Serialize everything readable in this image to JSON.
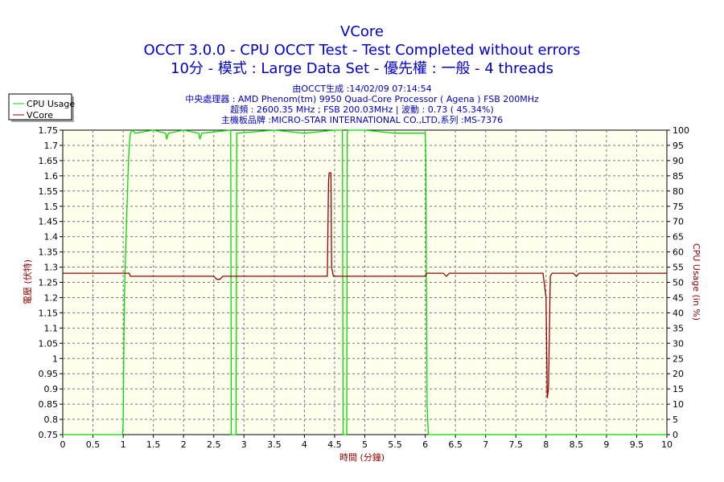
{
  "title": "VCore",
  "subtitle1": "OCCT 3.0.0 - CPU OCCT Test - Test Completed without errors",
  "subtitle2": "10分 - 模式 : Large Data Set - 優先權 : 一般 - 4 threads",
  "info": [
    "由OCCT生成 :14/02/09 07:14:54",
    "中央處理器 : AMD Phenom(tm) 9950 Quad-Core Processor ( Agena ) FSB 200MHz",
    "超頻 : 2600.35 MHz ; FSB 200.03MHz | 波動 : 0.73 ( 45.34%)",
    "主機板品牌 :MICRO-STAR INTERNATIONAL CO.,LTD,系列 :MS-7376"
  ],
  "colors": {
    "title": "#0000cc",
    "cpu": "#00dd00",
    "vcore": "#990000",
    "plot_bg": "#ffffee"
  },
  "chart_data": {
    "type": "line",
    "title": "VCore",
    "xlabel": "時間 (分鐘)",
    "ylabel_left": "電壓 (伏特)",
    "ylabel_right": "CPU Usage (in %)",
    "xlim": [
      0,
      10
    ],
    "ylim_left": [
      0.75,
      1.75
    ],
    "ylim_right": [
      0,
      100
    ],
    "grid": true,
    "legend_position": "top-left",
    "x_ticks": [
      "0",
      "0.5",
      "1",
      "1.5",
      "2",
      "2.5",
      "3",
      "3.5",
      "4",
      "4.5",
      "5",
      "5.5",
      "6",
      "6.5",
      "7",
      "7.5",
      "8",
      "8.5",
      "9",
      "9.5",
      "10"
    ],
    "y_left_ticks": [
      "0.75",
      "0.8",
      "0.85",
      "0.9",
      "0.95",
      "1",
      "1.05",
      "1.1",
      "1.15",
      "1.2",
      "1.25",
      "1.3",
      "1.35",
      "1.4",
      "1.45",
      "1.5",
      "1.55",
      "1.6",
      "1.65",
      "1.7",
      "1.75"
    ],
    "y_right_ticks": [
      "0",
      "5",
      "10",
      "15",
      "20",
      "25",
      "30",
      "35",
      "40",
      "45",
      "50",
      "55",
      "60",
      "65",
      "70",
      "75",
      "80",
      "85",
      "90",
      "95",
      "100"
    ],
    "series": [
      {
        "name": "CPU Usage",
        "axis": "right",
        "color": "#00dd00",
        "x": [
          0,
          0.99,
          1.0,
          1.02,
          1.04,
          1.06,
          1.08,
          1.1,
          1.12,
          1.15,
          1.2,
          1.5,
          1.7,
          1.72,
          1.75,
          2.0,
          2.25,
          2.27,
          2.3,
          2.78,
          2.79,
          2.8,
          2.86,
          2.87,
          2.88,
          3.5,
          4.0,
          4.5,
          4.63,
          4.64,
          4.65,
          4.7,
          4.71,
          4.72,
          5.0,
          5.5,
          6.0,
          6.01,
          6.02,
          6.03,
          6.05,
          10
        ],
        "y": [
          0,
          0,
          4,
          45,
          60,
          72,
          85,
          95,
          99,
          100,
          99,
          100,
          99,
          97,
          99,
          100,
          99,
          97,
          99,
          100,
          0,
          0,
          0,
          0,
          99,
          100,
          99,
          100,
          100,
          0,
          0,
          0,
          99,
          100,
          100,
          99,
          99,
          90,
          50,
          10,
          0,
          0
        ]
      },
      {
        "name": "VCore",
        "axis": "left",
        "color": "#990000",
        "x": [
          0,
          1.1,
          1.12,
          2.5,
          2.55,
          2.6,
          2.65,
          4.38,
          4.4,
          4.41,
          4.44,
          4.45,
          4.48,
          4.5,
          6.0,
          6.02,
          6.3,
          6.35,
          6.4,
          7.95,
          8.0,
          8.02,
          8.04,
          8.07,
          8.1,
          8.45,
          8.5,
          8.55,
          10
        ],
        "y": [
          1.28,
          1.28,
          1.27,
          1.27,
          1.26,
          1.26,
          1.27,
          1.27,
          1.58,
          1.61,
          1.61,
          1.3,
          1.27,
          1.27,
          1.27,
          1.28,
          1.28,
          1.27,
          1.28,
          1.28,
          1.2,
          0.87,
          0.9,
          1.27,
          1.28,
          1.28,
          1.27,
          1.28,
          1.28
        ]
      }
    ]
  }
}
